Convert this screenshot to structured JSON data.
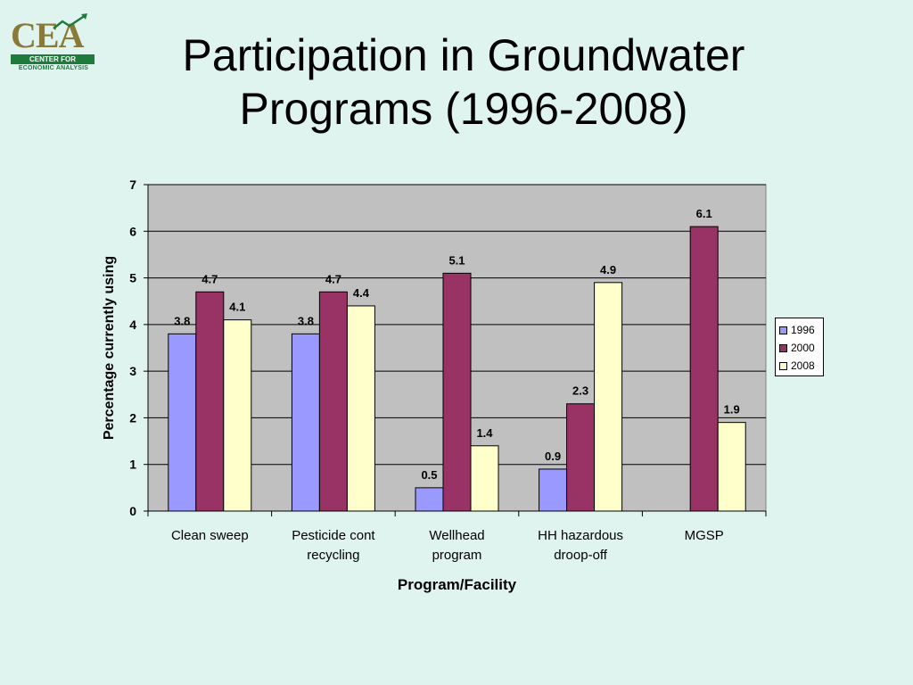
{
  "logo": {
    "letters": "CEA",
    "band_text": "CENTER FOR",
    "sub_text": "ECONOMIC ANALYSIS"
  },
  "title_lines": [
    "Participation in Groundwater",
    "Programs (1996-2008)"
  ],
  "chart_data": {
    "type": "bar",
    "categories": [
      "Clean sweep",
      "Pesticide cont recycling",
      "Wellhead program",
      "HH hazardous droop-off",
      "MGSP"
    ],
    "category_lines": [
      [
        "Clean sweep"
      ],
      [
        "Pesticide cont",
        "recycling"
      ],
      [
        "Wellhead",
        "program"
      ],
      [
        "HH hazardous",
        "droop-off"
      ],
      [
        "MGSP"
      ]
    ],
    "series": [
      {
        "name": "1996",
        "values": [
          3.8,
          3.8,
          0.5,
          0.9,
          null
        ],
        "color": "#9999ff"
      },
      {
        "name": "2000",
        "values": [
          4.7,
          4.7,
          5.1,
          2.3,
          6.1
        ],
        "color": "#993366"
      },
      {
        "name": "2008",
        "values": [
          4.1,
          4.4,
          1.4,
          4.9,
          1.9
        ],
        "color": "#ffffcc"
      }
    ],
    "xlabel": "Program/Facility",
    "ylabel": "Percentage currently using",
    "ylim": [
      0,
      7
    ],
    "yticks": [
      0,
      1,
      2,
      3,
      4,
      5,
      6,
      7
    ],
    "grid": true,
    "plot_background": "#c0c0c0",
    "legend_position": "right"
  }
}
